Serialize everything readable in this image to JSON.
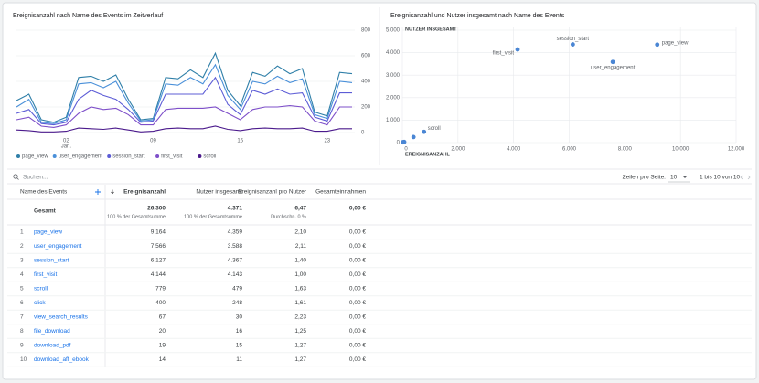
{
  "chart_data": [
    {
      "type": "line",
      "title": "Ereignisanzahl nach Name des Events im Zeitverlauf",
      "categories": [
        null,
        null,
        null,
        null,
        "02",
        null,
        null,
        null,
        null,
        null,
        null,
        "09",
        null,
        null,
        null,
        null,
        null,
        null,
        "16",
        null,
        null,
        null,
        null,
        null,
        null,
        "23",
        null,
        null
      ],
      "month_label": "Jan.",
      "series": [
        {
          "name": "page_view",
          "color": "#2f7fa8",
          "values": [
            250,
            300,
            100,
            80,
            120,
            430,
            440,
            400,
            450,
            260,
            100,
            110,
            430,
            420,
            490,
            430,
            620,
            330,
            210,
            470,
            440,
            520,
            460,
            500,
            160,
            130,
            470,
            460
          ]
        },
        {
          "name": "user_engagement",
          "color": "#4a90d9",
          "values": [
            200,
            260,
            80,
            70,
            100,
            380,
            390,
            350,
            400,
            230,
            90,
            100,
            380,
            370,
            430,
            380,
            530,
            290,
            180,
            400,
            380,
            440,
            390,
            420,
            140,
            110,
            400,
            390
          ]
        },
        {
          "name": "session_start",
          "color": "#5c5cd6",
          "values": [
            150,
            180,
            70,
            60,
            80,
            260,
            330,
            290,
            260,
            180,
            80,
            90,
            300,
            300,
            300,
            300,
            430,
            220,
            140,
            330,
            300,
            340,
            300,
            310,
            120,
            90,
            310,
            310
          ]
        },
        {
          "name": "first_visit",
          "color": "#7e4fc9",
          "values": [
            100,
            120,
            50,
            40,
            60,
            150,
            200,
            180,
            190,
            140,
            60,
            60,
            180,
            190,
            190,
            190,
            200,
            150,
            100,
            180,
            200,
            200,
            210,
            200,
            90,
            60,
            200,
            200
          ]
        },
        {
          "name": "scroll",
          "color": "#4b1a8c",
          "values": [
            20,
            15,
            5,
            5,
            10,
            35,
            30,
            25,
            35,
            20,
            5,
            10,
            30,
            35,
            30,
            30,
            50,
            25,
            15,
            30,
            35,
            30,
            30,
            35,
            10,
            10,
            30,
            30
          ]
        }
      ],
      "ylim": [
        0,
        800
      ],
      "yticks": [
        0,
        200,
        400,
        600,
        800
      ],
      "grid": true,
      "legend": "bottom"
    },
    {
      "type": "scatter",
      "title": "Ereignisanzahl und Nutzer insgesamt nach Name des Events",
      "xlabel": "EREIGNISANZAHL",
      "ylabel": "NUTZER INSGESAMT",
      "color": "#4a86d4",
      "x": [
        9164,
        7566,
        6127,
        4144,
        779,
        400,
        67,
        20,
        19,
        14
      ],
      "values": [
        4359,
        3588,
        4367,
        4143,
        479,
        248,
        30,
        16,
        15,
        11
      ],
      "point_labels": [
        "page_view",
        "user_engagement",
        "session_start",
        "first_visit",
        "scroll",
        null,
        null,
        null,
        null,
        null
      ],
      "xlim": [
        0,
        12000
      ],
      "xticks": [
        0,
        {
          "value": 2000,
          "label": "2.000"
        },
        {
          "value": 4000,
          "label": "4.000"
        },
        {
          "value": 6000,
          "label": "6.000"
        },
        {
          "value": 8000,
          "label": "8.000"
        },
        {
          "value": 10000,
          "label": "10.000"
        },
        {
          "value": 12000,
          "label": "12.000"
        }
      ],
      "ylim": [
        0,
        5000
      ],
      "yticks": [
        0,
        {
          "value": 1000,
          "label": "1.000"
        },
        {
          "value": 2000,
          "label": "2.000"
        },
        {
          "value": 3000,
          "label": "3.000"
        },
        {
          "value": 4000,
          "label": "4.000"
        },
        {
          "value": 5000,
          "label": "5.000"
        }
      ],
      "grid": true
    }
  ],
  "table": {
    "search_placeholder": "Suchen...",
    "rows_per_page_label": "Zeilen pro Seite:",
    "rows_per_page": 10,
    "pagination": "1 bis 10 von 10",
    "columns": [
      "Name des Events",
      "Ereignisanzahl",
      "Nutzer insgesamt",
      "Ereignisanzahl pro Nutzer",
      "Gesamteinnahmen"
    ],
    "total": {
      "label": "Gesamt",
      "cells": [
        "26.300",
        "4.371",
        "6,47",
        "0,00 €"
      ],
      "notes": [
        "100 % der Gesamtsumme",
        "100 % der Gesamtsumme",
        "Durchschn. 0 %"
      ]
    },
    "rows": [
      [
        1,
        "page_view",
        "9.164",
        "4.359",
        "2,10",
        "0,00 €"
      ],
      [
        2,
        "user_engagement",
        "7.566",
        "3.588",
        "2,11",
        "0,00 €"
      ],
      [
        3,
        "session_start",
        "6.127",
        "4.367",
        "1,40",
        "0,00 €"
      ],
      [
        4,
        "first_visit",
        "4.144",
        "4.143",
        "1,00",
        "0,00 €"
      ],
      [
        5,
        "scroll",
        "779",
        "479",
        "1,63",
        "0,00 €"
      ],
      [
        6,
        "click",
        "400",
        "248",
        "1,61",
        "0,00 €"
      ],
      [
        7,
        "view_search_results",
        "67",
        "30",
        "2,23",
        "0,00 €"
      ],
      [
        8,
        "file_download",
        "20",
        "16",
        "1,25",
        "0,00 €"
      ],
      [
        9,
        "download_pdf",
        "19",
        "15",
        "1,27",
        "0,00 €"
      ],
      [
        10,
        "download_aff_ebook",
        "14",
        "11",
        "1,27",
        "0,00 €"
      ]
    ]
  }
}
